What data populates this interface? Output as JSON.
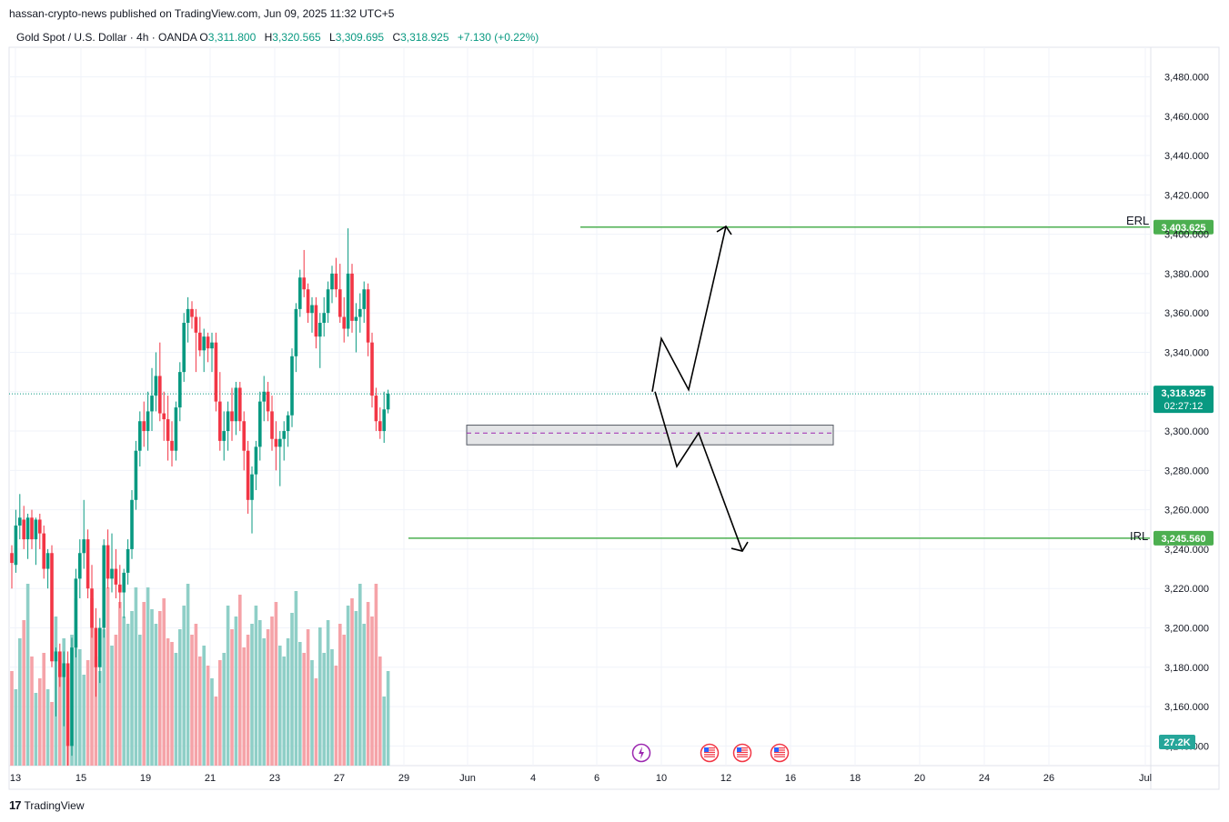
{
  "publisher_line": "hassan-crypto-news published on TradingView.com, Jun 09, 2025 11:32 UTC+5",
  "symbol": {
    "title": "Gold Spot / U.S. Dollar · 4h · OANDA",
    "o_label": "O",
    "o": "3,311.800",
    "h_label": "H",
    "h": "3,320.565",
    "l_label": "L",
    "l": "3,309.695",
    "c_label": "C",
    "c": "3,318.925",
    "change": "+7.130 (+0.22%)"
  },
  "footer_brand": "TradingView",
  "colors": {
    "up": "#089981",
    "down": "#f23645",
    "level": "#4caf50",
    "up_vol": "#8fcfc7",
    "down_vol": "#f5a3a8",
    "grid": "#f0f3fa"
  },
  "chart_data": {
    "type": "candlestick",
    "ylim": [
      3130,
      3495
    ],
    "y_ticks": [
      "3,480.000",
      "3,460.000",
      "3,440.000",
      "3,420.000",
      "3,400.000",
      "3,380.000",
      "3,360.000",
      "3,340.000",
      "3,320.000",
      "3,300.000",
      "3,280.000",
      "3,260.000",
      "3,240.000",
      "3,220.000",
      "3,200.000",
      "3,180.000",
      "3,160.000",
      "3,140.000"
    ],
    "x_ticks": [
      "13",
      "15",
      "19",
      "21",
      "23",
      "27",
      "29",
      "Jun",
      "4",
      "6",
      "10",
      "12",
      "16",
      "18",
      "20",
      "24",
      "26",
      "Jul"
    ],
    "price_label": "3,318.925",
    "countdown": "02:27:12",
    "volume_label": "27.2K",
    "last_price": 3318.925,
    "levels": [
      {
        "name": "ERL",
        "price": 3403.625,
        "label": "3,403.625"
      },
      {
        "name": "IRL",
        "price": 3245.56,
        "label": "3,245.560"
      }
    ],
    "zone": {
      "top": 3303,
      "bottom": 3293,
      "mid": 3299
    },
    "candles": [
      [
        3238,
        3242,
        3220,
        3233
      ],
      [
        3232,
        3260,
        3228,
        3252
      ],
      [
        3252,
        3268,
        3245,
        3256
      ],
      [
        3255,
        3262,
        3240,
        3245
      ],
      [
        3245,
        3258,
        3235,
        3256
      ],
      [
        3256,
        3260,
        3240,
        3245
      ],
      [
        3245,
        3256,
        3232,
        3255
      ],
      [
        3255,
        3258,
        3240,
        3248
      ],
      [
        3248,
        3252,
        3225,
        3230
      ],
      [
        3230,
        3240,
        3220,
        3238
      ],
      [
        3238,
        3242,
        3180,
        3183
      ],
      [
        3183,
        3190,
        3155,
        3188
      ],
      [
        3188,
        3192,
        3170,
        3175
      ],
      [
        3175,
        3188,
        3150,
        3182
      ],
      [
        3182,
        3188,
        3130,
        3140
      ],
      [
        3140,
        3195,
        3135,
        3190
      ],
      [
        3190,
        3230,
        3185,
        3225
      ],
      [
        3225,
        3245,
        3215,
        3238
      ],
      [
        3238,
        3265,
        3230,
        3245
      ],
      [
        3245,
        3250,
        3215,
        3220
      ],
      [
        3220,
        3232,
        3195,
        3200
      ],
      [
        3200,
        3210,
        3165,
        3180
      ],
      [
        3180,
        3205,
        3172,
        3200
      ],
      [
        3200,
        3245,
        3195,
        3242
      ],
      [
        3242,
        3250,
        3220,
        3225
      ],
      [
        3225,
        3248,
        3218,
        3230
      ],
      [
        3230,
        3240,
        3215,
        3222
      ],
      [
        3222,
        3232,
        3210,
        3218
      ],
      [
        3218,
        3230,
        3205,
        3228
      ],
      [
        3228,
        3245,
        3222,
        3240
      ],
      [
        3240,
        3270,
        3235,
        3265
      ],
      [
        3265,
        3295,
        3260,
        3290
      ],
      [
        3290,
        3310,
        3282,
        3305
      ],
      [
        3305,
        3315,
        3292,
        3300
      ],
      [
        3300,
        3320,
        3290,
        3310
      ],
      [
        3310,
        3332,
        3300,
        3318
      ],
      [
        3318,
        3340,
        3310,
        3328
      ],
      [
        3328,
        3345,
        3305,
        3309
      ],
      [
        3309,
        3320,
        3295,
        3306
      ],
      [
        3306,
        3318,
        3285,
        3295
      ],
      [
        3295,
        3305,
        3282,
        3290
      ],
      [
        3290,
        3315,
        3285,
        3312
      ],
      [
        3312,
        3335,
        3305,
        3330
      ],
      [
        3330,
        3360,
        3325,
        3355
      ],
      [
        3355,
        3368,
        3345,
        3362
      ],
      [
        3362,
        3366,
        3352,
        3358
      ],
      [
        3358,
        3362,
        3330,
        3350
      ],
      [
        3350,
        3358,
        3338,
        3341
      ],
      [
        3341,
        3352,
        3330,
        3348
      ],
      [
        3348,
        3350,
        3335,
        3342
      ],
      [
        3342,
        3350,
        3330,
        3345
      ],
      [
        3345,
        3350,
        3310,
        3315
      ],
      [
        3315,
        3330,
        3290,
        3295
      ],
      [
        3295,
        3310,
        3285,
        3300
      ],
      [
        3300,
        3315,
        3290,
        3310
      ],
      [
        3310,
        3322,
        3295,
        3305
      ],
      [
        3305,
        3325,
        3298,
        3322
      ],
      [
        3322,
        3325,
        3300,
        3305
      ],
      [
        3305,
        3310,
        3280,
        3290
      ],
      [
        3290,
        3295,
        3258,
        3265
      ],
      [
        3265,
        3282,
        3248,
        3278
      ],
      [
        3278,
        3295,
        3270,
        3292
      ],
      [
        3292,
        3320,
        3285,
        3315
      ],
      [
        3315,
        3328,
        3305,
        3320
      ],
      [
        3320,
        3325,
        3305,
        3310
      ],
      [
        3310,
        3318,
        3290,
        3296
      ],
      [
        3296,
        3305,
        3280,
        3292
      ],
      [
        3292,
        3300,
        3272,
        3296
      ],
      [
        3296,
        3305,
        3285,
        3300
      ],
      [
        3300,
        3310,
        3292,
        3308
      ],
      [
        3308,
        3342,
        3302,
        3338
      ],
      [
        3338,
        3365,
        3330,
        3362
      ],
      [
        3362,
        3382,
        3358,
        3378
      ],
      [
        3378,
        3392,
        3368,
        3372
      ],
      [
        3372,
        3375,
        3355,
        3360
      ],
      [
        3360,
        3368,
        3350,
        3364
      ],
      [
        3364,
        3368,
        3342,
        3348
      ],
      [
        3348,
        3360,
        3332,
        3355
      ],
      [
        3355,
        3368,
        3348,
        3360
      ],
      [
        3360,
        3376,
        3355,
        3372
      ],
      [
        3372,
        3384,
        3365,
        3380
      ],
      [
        3380,
        3388,
        3368,
        3372
      ],
      [
        3372,
        3385,
        3355,
        3358
      ],
      [
        3358,
        3368,
        3345,
        3352
      ],
      [
        3352,
        3403,
        3348,
        3380
      ],
      [
        3380,
        3385,
        3350,
        3356
      ],
      [
        3356,
        3365,
        3340,
        3358
      ],
      [
        3358,
        3370,
        3350,
        3362
      ],
      [
        3362,
        3376,
        3355,
        3372
      ],
      [
        3372,
        3375,
        3338,
        3345
      ],
      [
        3345,
        3350,
        3312,
        3318
      ],
      [
        3318,
        3322,
        3300,
        3305
      ],
      [
        3305,
        3312,
        3296,
        3300
      ],
      [
        3300,
        3320,
        3294,
        3311
      ],
      [
        3311,
        3321,
        3309,
        3319
      ]
    ],
    "volumes": [
      52,
      42,
      70,
      80,
      100,
      60,
      40,
      48,
      62,
      42,
      35,
      82,
      58,
      70,
      48,
      72,
      92,
      64,
      50,
      58,
      92,
      60,
      52,
      75,
      98,
      66,
      72,
      90,
      82,
      78,
      85,
      98,
      72,
      90,
      98,
      86,
      78,
      85,
      92,
      70,
      68,
      62,
      75,
      88,
      100,
      72,
      78,
      60,
      66,
      55,
      48,
      38,
      58,
      62,
      88,
      75,
      82,
      94,
      65,
      72,
      78,
      88,
      80,
      70,
      75,
      82,
      90,
      66,
      60,
      70,
      84,
      96,
      68,
      62,
      75,
      58,
      48,
      76,
      62,
      80,
      64,
      55,
      78,
      72,
      88,
      92,
      85,
      100,
      78,
      90,
      82,
      100,
      60,
      38,
      52
    ]
  },
  "annotations": {
    "erl_text": "ERL",
    "irl_text": "IRL"
  },
  "event_icons": [
    "lightning-icon",
    "us-flag-icon",
    "us-flag-icon",
    "us-flag-icon"
  ]
}
